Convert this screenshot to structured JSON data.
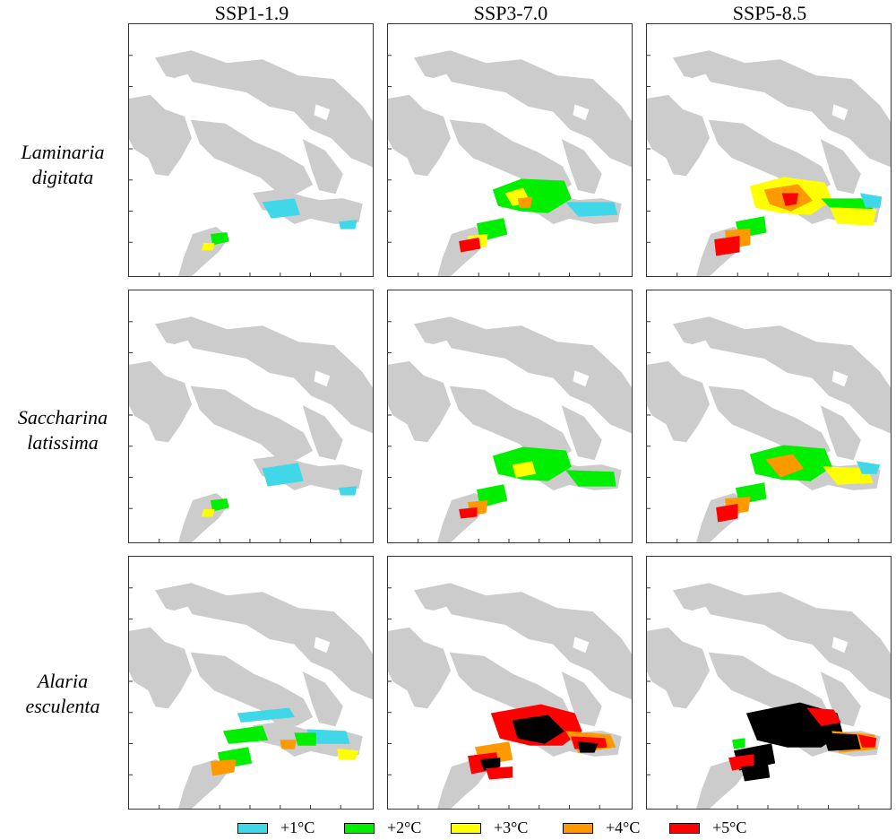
{
  "columns": [
    "SSP1-1.9",
    "SSP3-7.0",
    "SSP5-8.5"
  ],
  "rows": [
    {
      "label_line1": "Laminaria",
      "label_line2": "digitata"
    },
    {
      "label_line1": "Saccharina",
      "label_line2": "latissima"
    },
    {
      "label_line1": "Alaria",
      "label_line2": "esculenta"
    }
  ],
  "legend": [
    {
      "label": "+1°C",
      "color": "#40d8e8"
    },
    {
      "label": "+2°C",
      "color": "#00ee00"
    },
    {
      "label": "+3°C",
      "color": "#ffff00"
    },
    {
      "label": "+4°C",
      "color": "#ff9900"
    },
    {
      "label": "+5°C",
      "color": "#ff0000"
    }
  ],
  "colors": {
    "land": "#cccccc",
    "ocean": "#ffffff",
    "lost_range": "#000000"
  }
}
